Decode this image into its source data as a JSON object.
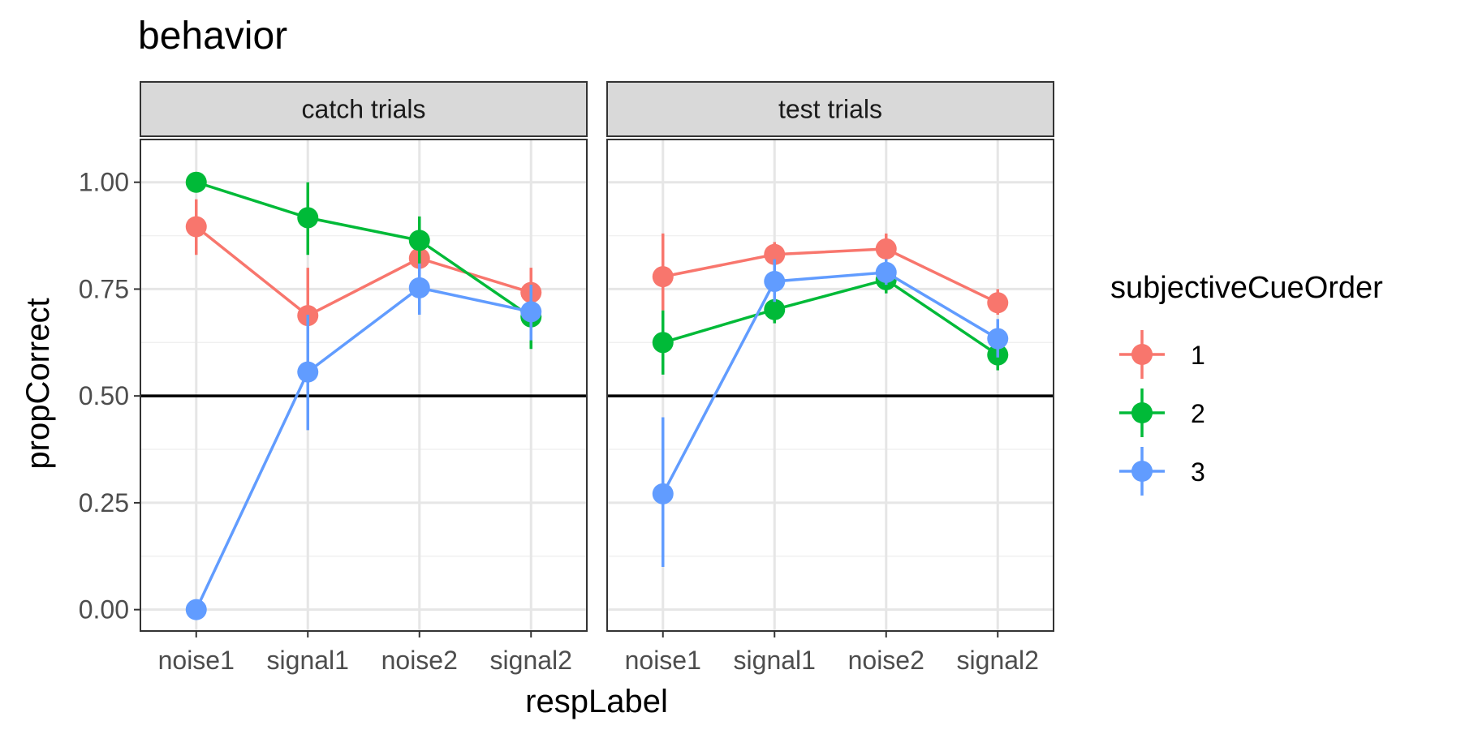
{
  "chart_data": {
    "type": "line",
    "title": "behavior",
    "xlabel": "respLabel",
    "ylabel": "propCorrect",
    "categories": [
      "noise1",
      "signal1",
      "noise2",
      "signal2"
    ],
    "ylim": [
      -0.05,
      1.1
    ],
    "yticks": [
      "0.00",
      "0.25",
      "0.50",
      "0.75",
      "1.00"
    ],
    "reference_line": 0.5,
    "grid": true,
    "legend": {
      "title": "subjectiveCueOrder",
      "placement": "right"
    },
    "panels": [
      {
        "label": "catch trials",
        "series": [
          {
            "name": "1",
            "color": "#F8766D",
            "values": [
              0.896,
              0.688,
              0.822,
              0.742
            ],
            "ci_low": [
              0.83,
              0.58,
              0.77,
              0.69
            ],
            "ci_high": [
              0.96,
              0.8,
              0.88,
              0.8
            ]
          },
          {
            "name": "2",
            "color": "#00BA38",
            "values": [
              1.0,
              0.917,
              0.864,
              0.685
            ],
            "ci_low": [
              1.0,
              0.83,
              0.8,
              0.61
            ],
            "ci_high": [
              1.0,
              1.0,
              0.92,
              0.76
            ]
          },
          {
            "name": "3",
            "color": "#619CFF",
            "values": [
              0.0,
              0.556,
              0.753,
              0.697
            ],
            "ci_low": [
              0.0,
              0.42,
              0.69,
              0.63
            ],
            "ci_high": [
              0.0,
              0.69,
              0.81,
              0.76
            ]
          }
        ]
      },
      {
        "label": "test trials",
        "series": [
          {
            "name": "1",
            "color": "#F8766D",
            "values": [
              0.779,
              0.831,
              0.844,
              0.718
            ],
            "ci_low": [
              0.7,
              0.8,
              0.81,
              0.69
            ],
            "ci_high": [
              0.88,
              0.86,
              0.88,
              0.75
            ]
          },
          {
            "name": "2",
            "color": "#00BA38",
            "values": [
              0.625,
              0.702,
              0.772,
              0.596
            ],
            "ci_low": [
              0.55,
              0.67,
              0.74,
              0.56
            ],
            "ci_high": [
              0.7,
              0.74,
              0.81,
              0.64
            ]
          },
          {
            "name": "3",
            "color": "#619CFF",
            "values": [
              0.271,
              0.768,
              0.789,
              0.634
            ],
            "ci_low": [
              0.1,
              0.72,
              0.76,
              0.59
            ],
            "ci_high": [
              0.45,
              0.82,
              0.82,
              0.68
            ]
          }
        ]
      }
    ]
  }
}
